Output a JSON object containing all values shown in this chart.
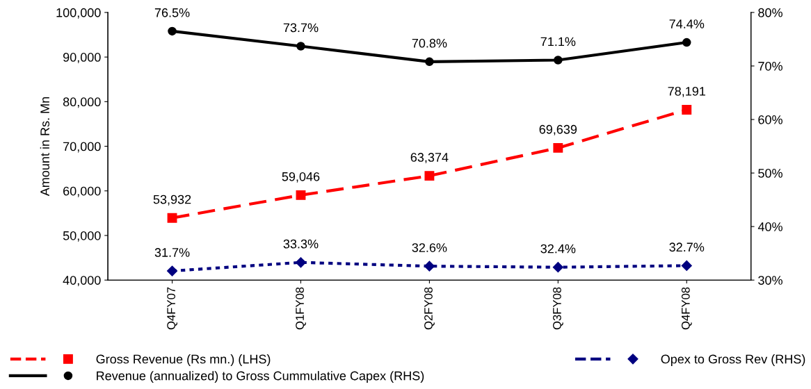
{
  "chart_data": {
    "type": "line",
    "ylabel": "Amount in Rs. Mn",
    "categories": [
      "Q4FY07",
      "Q1FY08",
      "Q2FY08",
      "Q3FY08",
      "Q4FY08"
    ],
    "ylim": [
      40000,
      100000
    ],
    "yticks": [
      {
        "value": 40000,
        "label": "40,000"
      },
      {
        "value": 50000,
        "label": "50,000"
      },
      {
        "value": 60000,
        "label": "60,000"
      },
      {
        "value": 70000,
        "label": "70,000"
      },
      {
        "value": 80000,
        "label": "80,000"
      },
      {
        "value": 90000,
        "label": "90,000"
      },
      {
        "value": 100000,
        "label": "100,000"
      }
    ],
    "y2lim": [
      30,
      80
    ],
    "y2ticks": [
      {
        "value": 30,
        "label": "30%"
      },
      {
        "value": 40,
        "label": "40%"
      },
      {
        "value": 50,
        "label": "50%"
      },
      {
        "value": 60,
        "label": "60%"
      },
      {
        "value": 70,
        "label": "70%"
      },
      {
        "value": 80,
        "label": "80%"
      }
    ],
    "grid": false,
    "legend": "bottom",
    "series": [
      {
        "name": "Gross Revenue (Rs mn.) (LHS)",
        "color": "#ff0000",
        "marker": "square",
        "line_style": "dashed",
        "values": [
          53932,
          59046,
          63374,
          69639,
          78191
        ],
        "value_labels": [
          "53,932",
          "59,046",
          "63,374",
          "69,639",
          "78,191"
        ]
      },
      {
        "name": "Revenue (annualized) to Gross Cummulative Capex (RHS)",
        "color": "#000000",
        "marker": "circle",
        "line_style": "solid",
        "axis": "y2",
        "values": [
          76.5,
          73.7,
          70.8,
          71.1,
          74.4
        ],
        "value_labels": [
          "76.5%",
          "73.7%",
          "70.8%",
          "71.1%",
          "74.4%"
        ]
      },
      {
        "name": "Opex to Gross Rev (RHS)",
        "color": "#000080",
        "marker": "diamond",
        "line_style": "dotted",
        "axis": "y2",
        "values": [
          31.7,
          33.3,
          32.6,
          32.4,
          32.7
        ],
        "value_labels": [
          "31.7%",
          "33.3%",
          "32.6%",
          "32.4%",
          "32.7%"
        ]
      }
    ]
  }
}
